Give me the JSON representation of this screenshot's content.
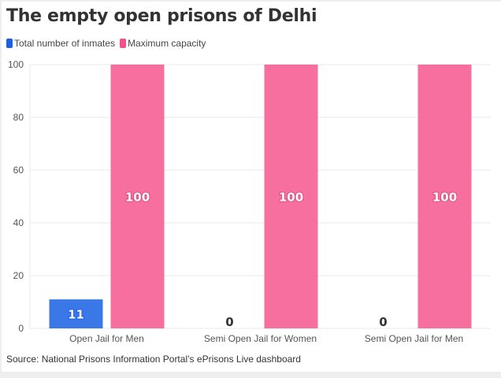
{
  "chart_data": {
    "type": "bar",
    "title": "The empty open prisons of Delhi",
    "categories": [
      "Open Jail for Men",
      "Semi Open Jail for Women",
      "Semi Open Jail for Men"
    ],
    "series": [
      {
        "name": "Total number of inmates",
        "values": [
          11,
          0,
          0
        ],
        "color": "#3b78e7"
      },
      {
        "name": "Maximum capacity",
        "values": [
          100,
          100,
          100
        ],
        "color": "#f76f9e"
      }
    ],
    "ylim": [
      0,
      100
    ],
    "yticks": [
      0,
      20,
      40,
      60,
      80,
      100
    ],
    "grid": true,
    "legend": "top-left",
    "source": "Source: National Prisons Information Portal’s ePrisons Live dashboard"
  }
}
